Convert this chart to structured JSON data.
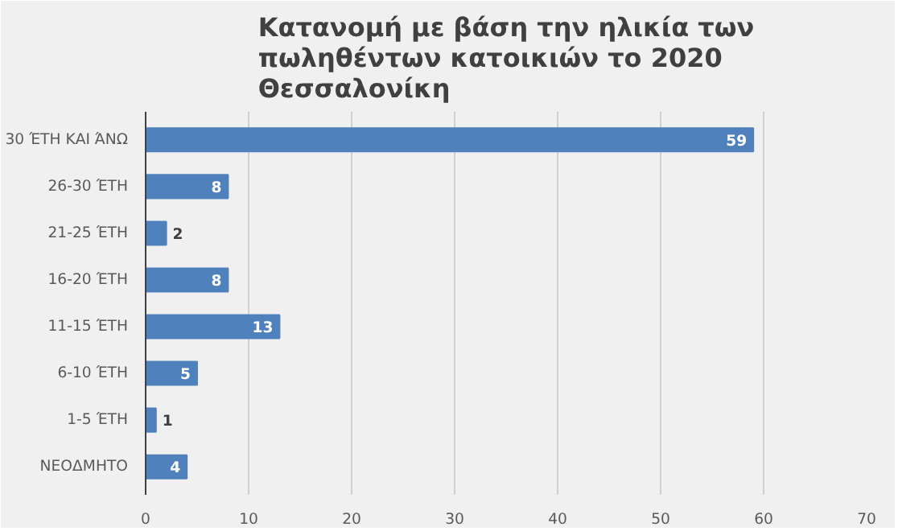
{
  "chart_data": {
    "type": "bar",
    "orientation": "horizontal",
    "title": "Κατανομή με βάση την ηλικία των\nπωληθέντων κατοικιών το 2020\nΘεσσαλονίκη",
    "categories": [
      "30 ΈΤΗ ΚΑΙ ΆΝΩ",
      "26-30 ΈΤΗ",
      "21-25 ΈΤΗ",
      "16-20 ΈΤΗ",
      "11-15 ΈΤΗ",
      "6-10 ΈΤΗ",
      "1-5 ΈΤΗ",
      "ΝΕΟΔΜΗΤΟ"
    ],
    "values": [
      59,
      8,
      2,
      8,
      13,
      5,
      1,
      4
    ],
    "color": "#4f81bd",
    "xlim": [
      0,
      70
    ],
    "xticks": [
      0,
      10,
      20,
      30,
      40,
      50,
      60,
      70
    ],
    "grid": "x",
    "data_labels": true
  }
}
